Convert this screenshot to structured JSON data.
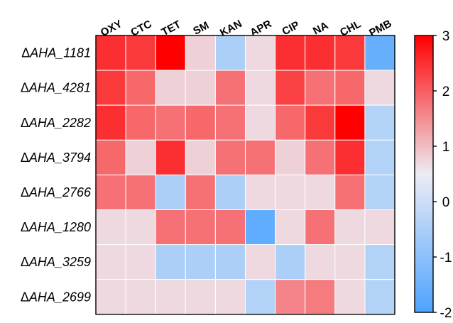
{
  "chart_data": {
    "type": "heatmap",
    "title": "",
    "delta_symbol": "Δ",
    "columns": [
      "OXY",
      "CTC",
      "TET",
      "SM",
      "KAN",
      "APR",
      "CIP",
      "NA",
      "CHL",
      "PMB"
    ],
    "rows": [
      "AHA_1181",
      "AHA_4281",
      "AHA_2282",
      "AHA_3794",
      "AHA_2766",
      "AHA_1280",
      "AHA_3259",
      "AHA_2699"
    ],
    "values": [
      [
        2.5,
        2.4,
        3.0,
        0.8,
        -0.5,
        0.7,
        2.5,
        2.5,
        2.4,
        -1.6
      ],
      [
        2.4,
        1.9,
        0.8,
        0.8,
        1.8,
        0.7,
        2.3,
        1.8,
        1.9,
        0.7
      ],
      [
        2.5,
        1.9,
        1.8,
        1.9,
        1.8,
        0.7,
        1.9,
        2.4,
        3.0,
        -0.4
      ],
      [
        1.9,
        0.8,
        2.5,
        0.8,
        1.8,
        1.8,
        0.8,
        1.8,
        2.5,
        -0.4
      ],
      [
        1.8,
        1.8,
        -0.5,
        1.8,
        -0.5,
        0.7,
        0.7,
        0.7,
        1.8,
        -0.4
      ],
      [
        0.7,
        0.7,
        1.8,
        1.8,
        1.8,
        -1.7,
        0.7,
        1.8,
        0.7,
        0.7
      ],
      [
        0.7,
        0.7,
        -0.5,
        -0.5,
        -0.5,
        0.7,
        -0.5,
        0.7,
        0.7,
        -0.4
      ],
      [
        0.7,
        0.7,
        0.7,
        0.7,
        0.7,
        -0.4,
        1.6,
        1.7,
        0.7,
        -0.4
      ]
    ],
    "colorbar": {
      "min": -2,
      "max": 3,
      "ticks": [
        3,
        2,
        1,
        0,
        -1,
        -2
      ],
      "tick_labels": [
        "3",
        "2",
        "1",
        "0",
        "-1",
        "-2"
      ],
      "colors": {
        "low": "#4da3ff",
        "mid": "#ececf4",
        "high": "#ff0000"
      }
    }
  }
}
